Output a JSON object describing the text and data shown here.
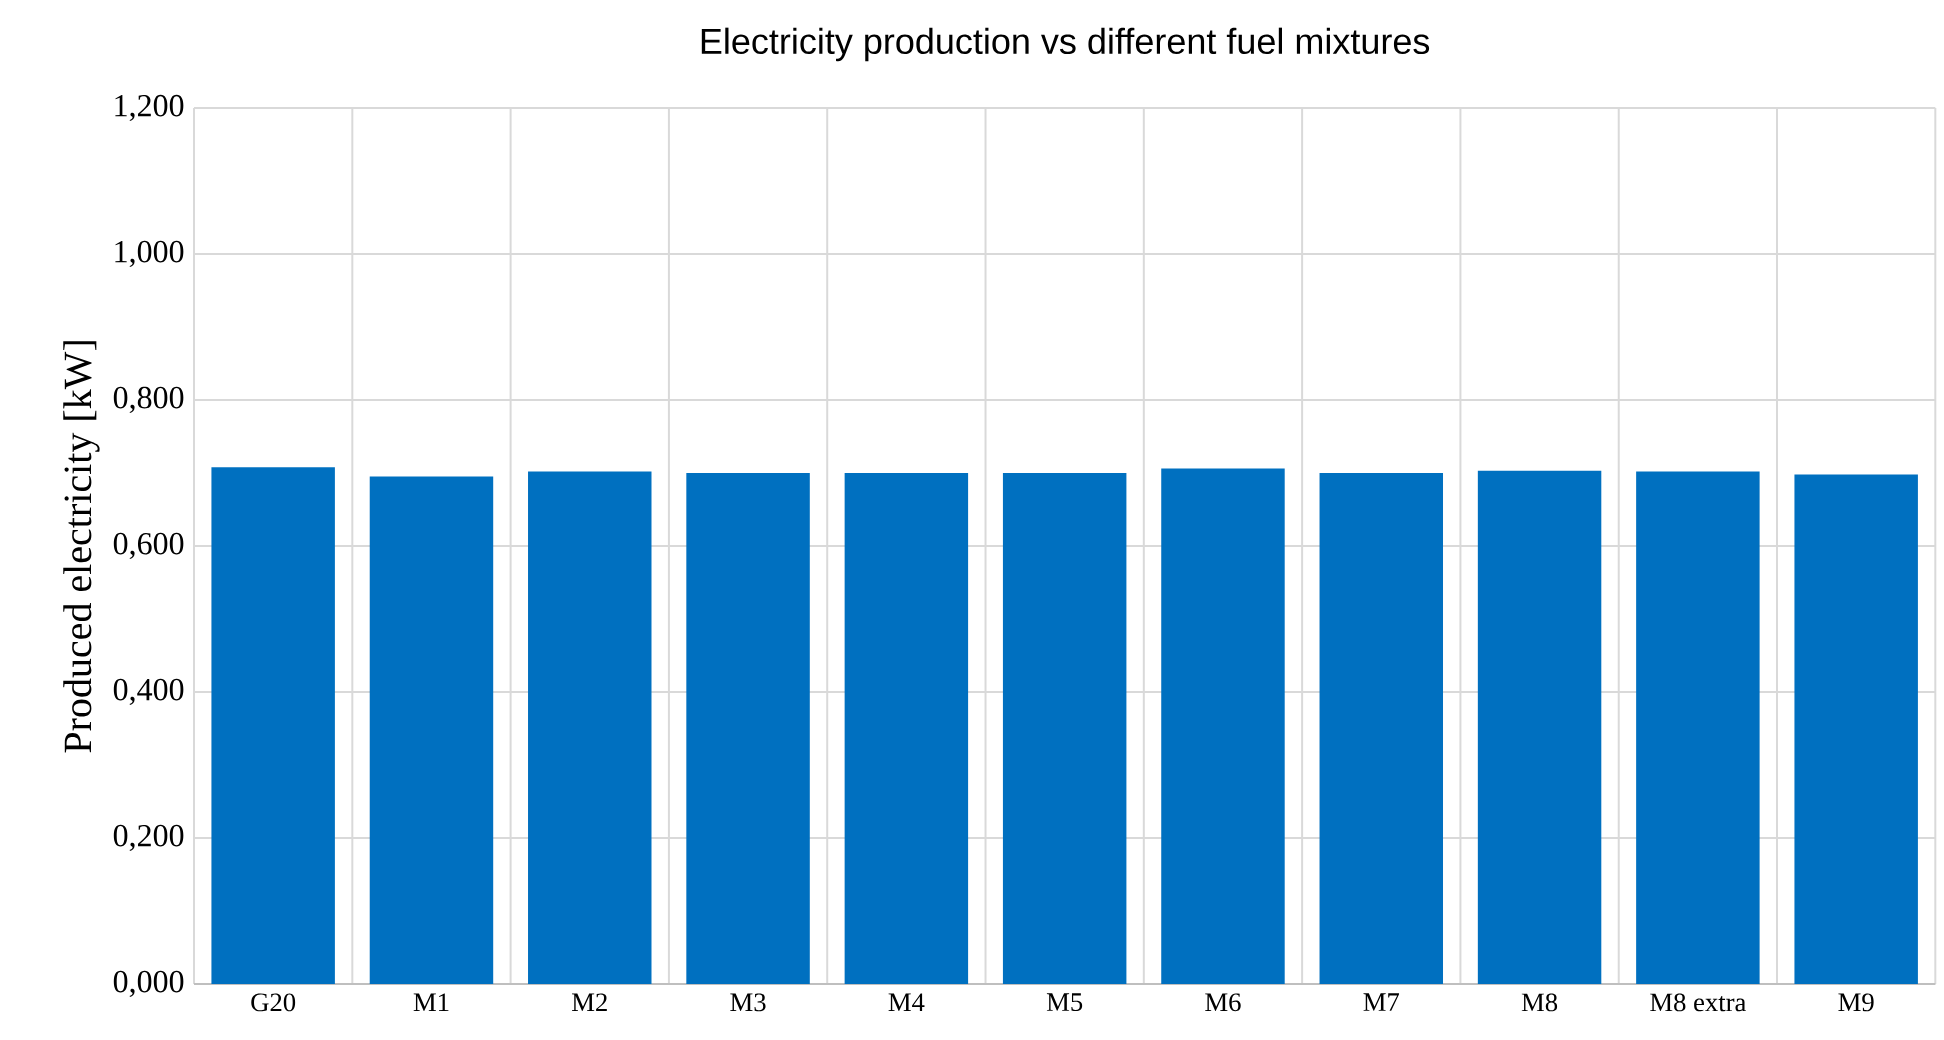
{
  "chart_data": {
    "type": "bar",
    "title": "Electricity production vs different fuel mixtures",
    "ylabel": "Produced electricity  [kW]",
    "categories": [
      "G20",
      "M1",
      "M2",
      "M3",
      "M4",
      "M5",
      "M6",
      "M7",
      "M8",
      "M8 extra",
      "M9"
    ],
    "values": [
      0.708,
      0.695,
      0.702,
      0.7,
      0.7,
      0.7,
      0.706,
      0.7,
      0.703,
      0.702,
      0.698
    ],
    "color": "#0070c0",
    "ylim": [
      0,
      1.2
    ],
    "yticks": [
      {
        "value": 0,
        "label": "0,000"
      },
      {
        "value": 0.2,
        "label": "0,200"
      },
      {
        "value": 0.4,
        "label": "0,400"
      },
      {
        "value": 0.6,
        "label": "0,600"
      },
      {
        "value": 0.8,
        "label": "0,800"
      },
      {
        "value": 1.0,
        "label": "1,000"
      },
      {
        "value": 1.2,
        "label": "1,200"
      }
    ],
    "grid": true
  }
}
